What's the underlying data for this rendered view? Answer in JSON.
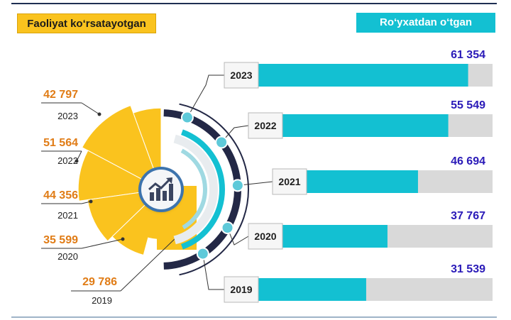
{
  "legend": {
    "active_label": "Faoliyat ko‘rsatayotgan",
    "registered_label": "Ro‘yxatdan o‘tgan"
  },
  "colors": {
    "active": "#fac31e",
    "registered": "#13c0d2",
    "bar_background": "#d9d9d9",
    "active_value_text": "#e07c16",
    "registered_value_text": "#2a1ab8",
    "ring_dark": "#232846",
    "dot": "#5ec9d9"
  },
  "icon": "growth-chart-icon",
  "chart_data": [
    {
      "type": "pie",
      "series_key": "active",
      "categories": [
        "2023",
        "2022",
        "2021",
        "2020",
        "2019"
      ],
      "values": [
        42797,
        51564,
        44356,
        35599,
        29786
      ],
      "value_labels": [
        "42 797",
        "51 564",
        "44 356",
        "35 599",
        "29 786"
      ]
    },
    {
      "type": "bar",
      "orientation": "horizontal",
      "series_key": "registered",
      "categories": [
        "2023",
        "2022",
        "2021",
        "2020",
        "2019"
      ],
      "values": [
        61354,
        55549,
        46694,
        37767,
        31539
      ],
      "value_labels": [
        "61 354",
        "55 549",
        "46 694",
        "37 767",
        "31 539"
      ],
      "xlim": [
        0,
        68500
      ]
    }
  ]
}
